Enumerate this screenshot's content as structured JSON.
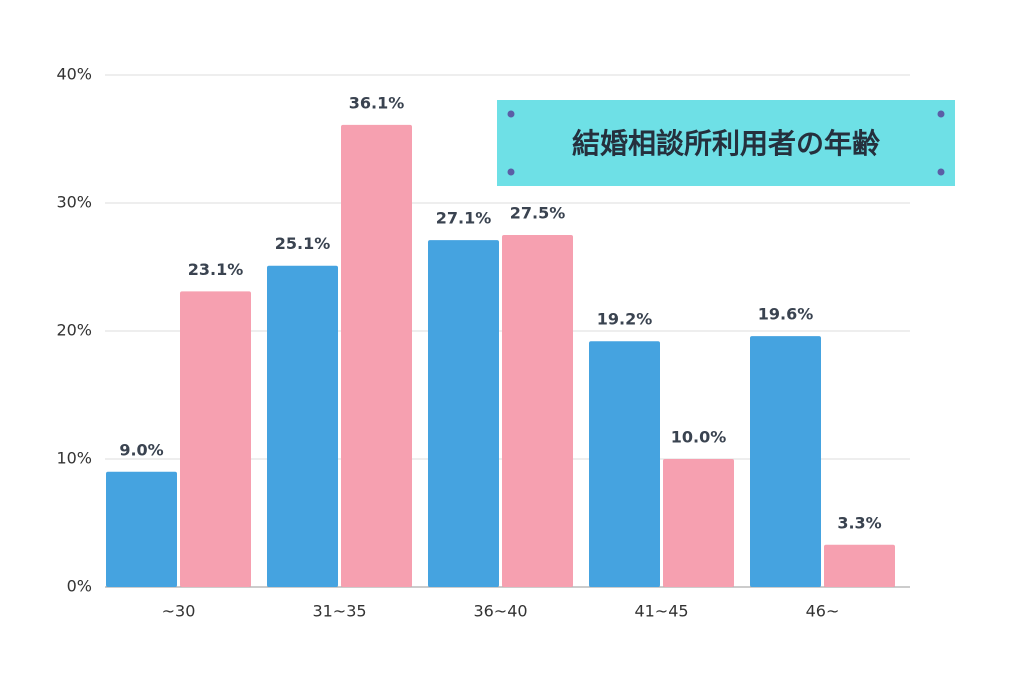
{
  "chart_data": {
    "type": "bar",
    "title": "結婚相談所利用者の年齢",
    "categories": [
      "~30",
      "31~35",
      "36~40",
      "41~45",
      "46~"
    ],
    "series": [
      {
        "color": "#45a3e0",
        "values": [
          9.0,
          25.1,
          27.1,
          19.2,
          19.6
        ],
        "value_labels": [
          "9.0%",
          "25.1%",
          "27.1%",
          "19.2%",
          "19.6%"
        ]
      },
      {
        "color": "#f6a0b0",
        "values": [
          23.1,
          36.1,
          27.5,
          10.0,
          3.3
        ],
        "value_labels": [
          "23.1%",
          "36.1%",
          "27.5%",
          "10.0%",
          "3.3%"
        ]
      }
    ],
    "ylim": [
      0,
      40
    ],
    "yticks": [
      {
        "value": 0,
        "label": "0%"
      },
      {
        "value": 10,
        "label": "10%"
      },
      {
        "value": 20,
        "label": "20%"
      },
      {
        "value": 30,
        "label": "30%"
      },
      {
        "value": 40,
        "label": "40%"
      }
    ],
    "grid": true
  }
}
